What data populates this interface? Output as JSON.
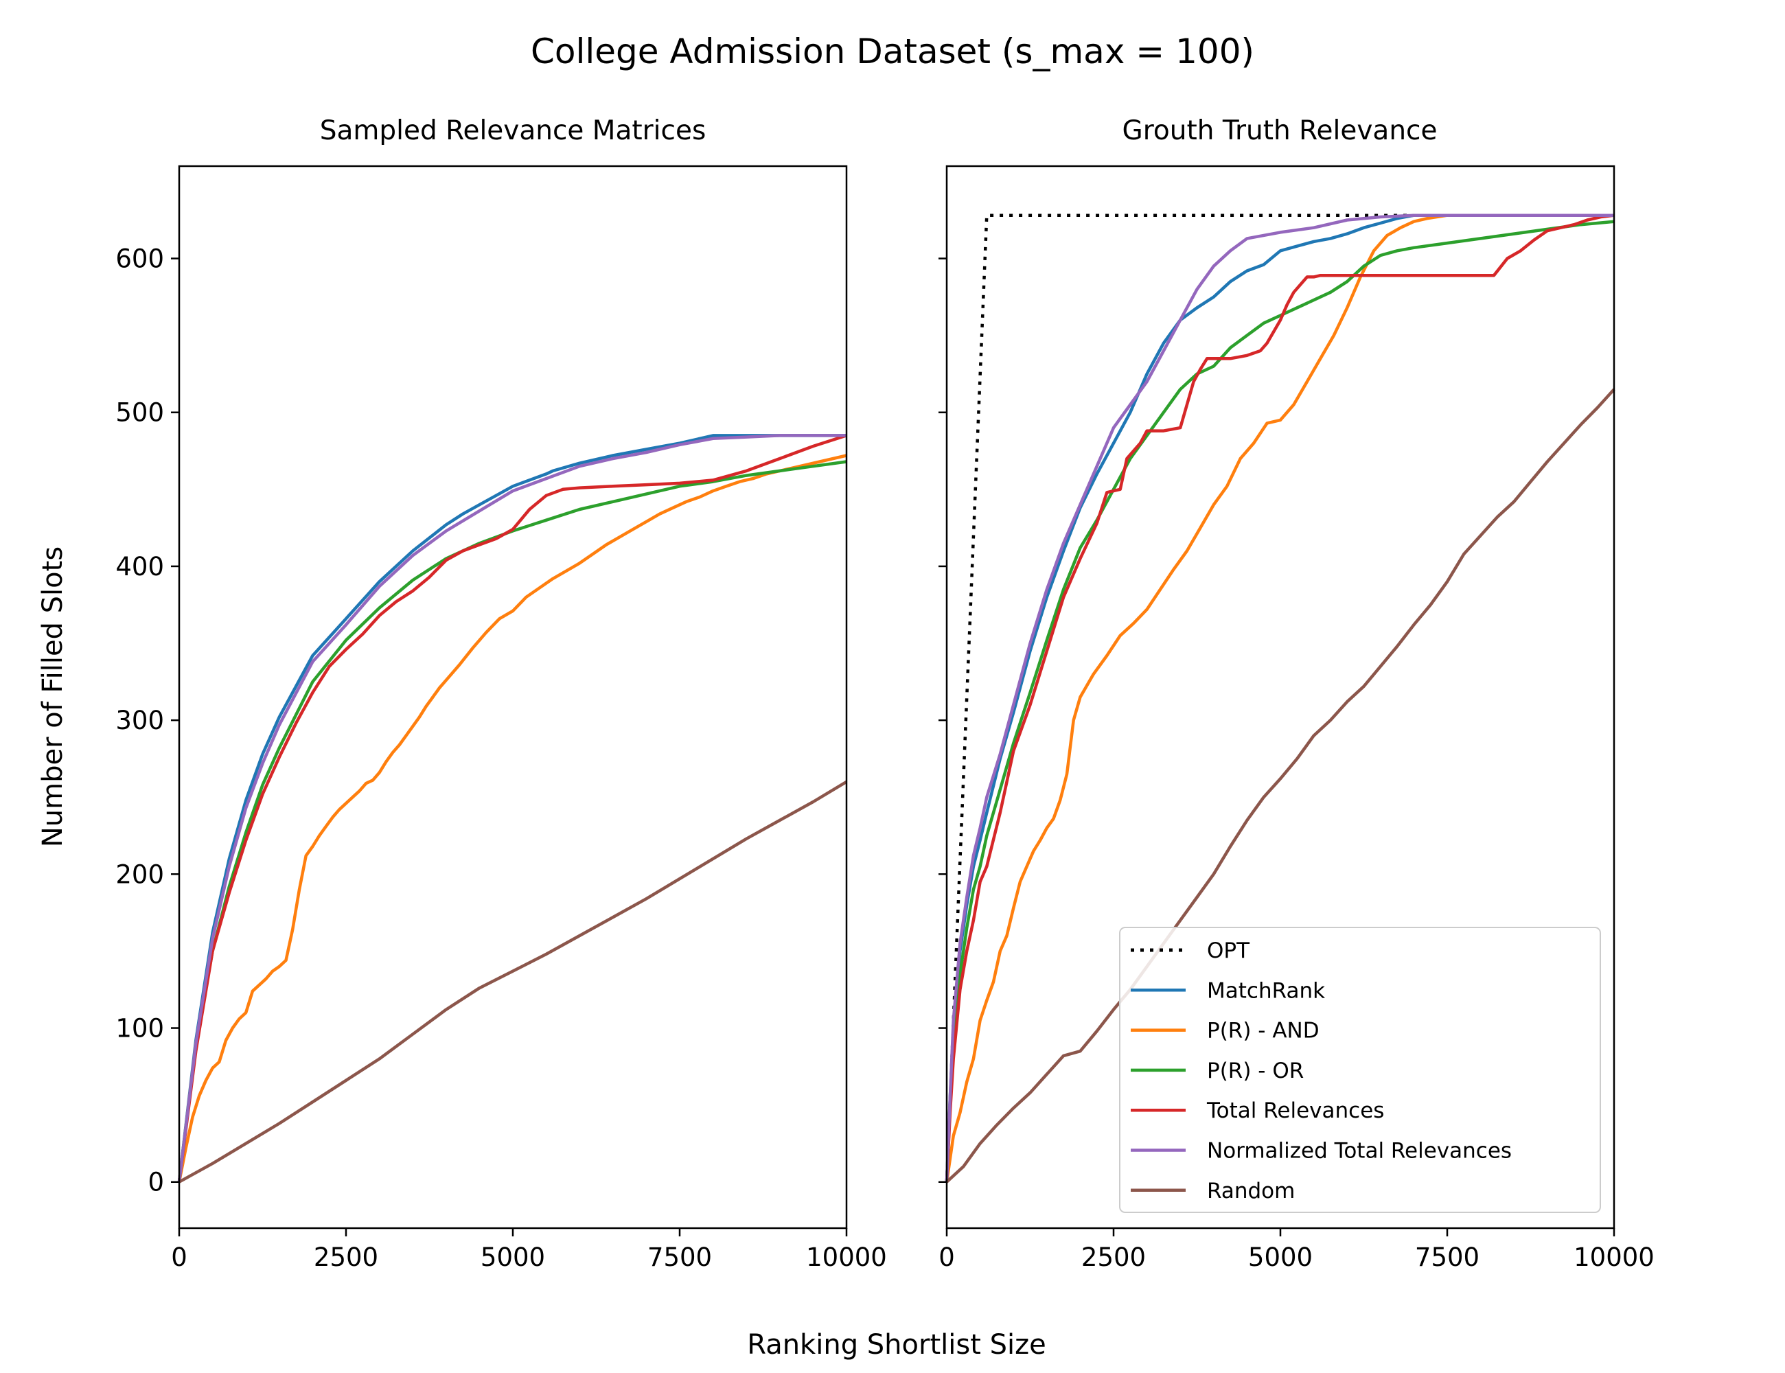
{
  "figure": {
    "title": "College Admission Dataset (s_max = 100)",
    "xlabel": "Ranking Shortlist Size",
    "ylabel": "Number of Filled Slots"
  },
  "chart_data": [
    {
      "type": "line",
      "title": "Sampled Relevance Matrices",
      "xlabel": "Ranking Shortlist Size",
      "ylabel": "Number of Filled Slots",
      "xlim": [
        0,
        10000
      ],
      "ylim": [
        -30,
        660
      ],
      "xticks": [
        0,
        2500,
        5000,
        7500,
        10000
      ],
      "yticks": [
        0,
        100,
        200,
        300,
        400,
        500,
        600
      ],
      "grid": false,
      "series": [
        {
          "key": "matchrank",
          "color": "#1f77b4",
          "x": [
            0,
            250,
            500,
            750,
            1000,
            1250,
            1500,
            2000,
            2500,
            3000,
            3500,
            4000,
            4250,
            4500,
            5000,
            5500,
            5600,
            6000,
            6500,
            7000,
            7500,
            8000,
            8500,
            9000,
            9500,
            10000
          ],
          "y": [
            0,
            92,
            162,
            210,
            248,
            278,
            302,
            342,
            366,
            390,
            410,
            427,
            434,
            440,
            452,
            460,
            462,
            467,
            472,
            476,
            480,
            485,
            485,
            485,
            485,
            485
          ]
        },
        {
          "key": "p_and",
          "color": "#ff7f0e",
          "x": [
            0,
            100,
            200,
            300,
            400,
            500,
            600,
            700,
            800,
            900,
            1000,
            1100,
            1200,
            1300,
            1400,
            1500,
            1600,
            1700,
            1800,
            1900,
            2000,
            2100,
            2200,
            2300,
            2400,
            2500,
            2600,
            2700,
            2800,
            2900,
            3000,
            3100,
            3200,
            3300,
            3400,
            3500,
            3600,
            3700,
            3800,
            3900,
            4000,
            4200,
            4400,
            4600,
            4800,
            5000,
            5200,
            5400,
            5600,
            5800,
            6000,
            6200,
            6400,
            6600,
            6800,
            7000,
            7200,
            7400,
            7600,
            7800,
            8000,
            8200,
            8400,
            8600,
            8800,
            9000,
            9200,
            9400,
            9600,
            9800,
            10000
          ],
          "y": [
            0,
            22,
            42,
            56,
            66,
            74,
            78,
            92,
            100,
            106,
            110,
            124,
            128,
            132,
            137,
            140,
            144,
            164,
            190,
            212,
            218,
            225,
            231,
            237,
            242,
            246,
            250,
            254,
            259,
            261,
            266,
            273,
            279,
            284,
            290,
            296,
            302,
            309,
            315,
            321,
            326,
            336,
            347,
            357,
            366,
            371,
            380,
            386,
            392,
            397,
            402,
            408,
            414,
            419,
            424,
            429,
            434,
            438,
            442,
            445,
            449,
            452,
            455,
            457,
            460,
            462,
            464,
            466,
            468,
            470,
            472
          ]
        },
        {
          "key": "p_or",
          "color": "#2ca02c",
          "x": [
            0,
            250,
            500,
            750,
            1000,
            1250,
            1500,
            2000,
            2500,
            3000,
            3500,
            4000,
            4500,
            5000,
            5500,
            6000,
            6500,
            7000,
            7500,
            8000,
            8500,
            9000,
            9500,
            10000
          ],
          "y": [
            0,
            90,
            150,
            192,
            227,
            258,
            282,
            325,
            352,
            373,
            391,
            405,
            415,
            423,
            430,
            437,
            442,
            447,
            452,
            455,
            459,
            462,
            465,
            468
          ]
        },
        {
          "key": "total",
          "color": "#d62728",
          "x": [
            0,
            250,
            500,
            750,
            1000,
            1250,
            1500,
            1750,
            2000,
            2250,
            2500,
            2750,
            3000,
            3250,
            3500,
            3750,
            4000,
            4250,
            4500,
            4750,
            5000,
            5250,
            5500,
            5750,
            6000,
            6500,
            7000,
            7500,
            8000,
            8500,
            9000,
            9500,
            10000
          ],
          "y": [
            0,
            85,
            150,
            188,
            222,
            252,
            276,
            298,
            318,
            335,
            346,
            356,
            368,
            377,
            384,
            393,
            404,
            410,
            414,
            418,
            424,
            437,
            446,
            450,
            451,
            452,
            453,
            454,
            456,
            462,
            470,
            478,
            485
          ]
        },
        {
          "key": "normalized",
          "color": "#9467bd",
          "x": [
            0,
            250,
            500,
            750,
            1000,
            1250,
            1500,
            2000,
            2500,
            3000,
            3500,
            4000,
            4500,
            5000,
            5500,
            6000,
            6500,
            7000,
            7500,
            8000,
            8500,
            9000,
            9500,
            10000
          ],
          "y": [
            0,
            90,
            158,
            205,
            243,
            272,
            297,
            338,
            362,
            387,
            407,
            423,
            436,
            449,
            457,
            465,
            470,
            474,
            479,
            483,
            484,
            485,
            485,
            485
          ]
        },
        {
          "key": "random",
          "color": "#8c564b",
          "x": [
            0,
            500,
            1000,
            1500,
            2000,
            2500,
            3000,
            3500,
            4000,
            4500,
            5000,
            5500,
            6000,
            6500,
            7000,
            7500,
            8000,
            8500,
            9000,
            9500,
            10000
          ],
          "y": [
            0,
            12,
            25,
            38,
            52,
            66,
            80,
            96,
            112,
            126,
            137,
            148,
            160,
            172,
            184,
            197,
            210,
            223,
            235,
            247,
            260
          ]
        }
      ]
    },
    {
      "type": "line",
      "title": "Grouth Truth Relevance",
      "xlabel": "Ranking Shortlist Size",
      "ylabel": "",
      "xlim": [
        0,
        10000
      ],
      "ylim": [
        -30,
        660
      ],
      "xticks": [
        0,
        2500,
        5000,
        7500,
        10000
      ],
      "yticks": [
        0,
        100,
        200,
        300,
        400,
        500,
        600
      ],
      "grid": false,
      "legend": {
        "loc": "lower right"
      },
      "series": [
        {
          "key": "opt",
          "name": "OPT",
          "color": "#000000",
          "dash": "dotted",
          "x": [
            0,
            600,
            10000
          ],
          "y": [
            0,
            628,
            628
          ]
        },
        {
          "key": "matchrank",
          "name": "MatchRank",
          "color": "#1f77b4",
          "x": [
            0,
            50,
            100,
            200,
            300,
            400,
            500,
            600,
            800,
            1000,
            1250,
            1500,
            1750,
            2000,
            2250,
            2500,
            2750,
            3000,
            3250,
            3500,
            3750,
            4000,
            4250,
            4500,
            4750,
            5000,
            5250,
            5500,
            5750,
            6000,
            6250,
            6500,
            6750,
            7000,
            7500,
            8000,
            9000,
            10000
          ],
          "y": [
            0,
            55,
            100,
            150,
            180,
            205,
            222,
            240,
            275,
            305,
            345,
            380,
            410,
            438,
            460,
            480,
            500,
            525,
            545,
            560,
            568,
            575,
            585,
            592,
            596,
            605,
            608,
            611,
            613,
            616,
            620,
            623,
            626,
            628,
            628,
            628,
            628,
            628
          ]
        },
        {
          "key": "p_and",
          "name": "P(R) - AND",
          "color": "#ff7f0e",
          "x": [
            0,
            100,
            200,
            300,
            400,
            500,
            600,
            700,
            800,
            900,
            1000,
            1100,
            1200,
            1300,
            1400,
            1500,
            1600,
            1700,
            1800,
            1900,
            2000,
            2200,
            2400,
            2600,
            2800,
            3000,
            3200,
            3400,
            3600,
            3800,
            4000,
            4200,
            4400,
            4600,
            4800,
            5000,
            5200,
            5400,
            5600,
            5800,
            6000,
            6200,
            6400,
            6600,
            6800,
            7000,
            7200,
            7500,
            8000,
            9000,
            10000
          ],
          "y": [
            0,
            30,
            45,
            65,
            80,
            105,
            118,
            130,
            150,
            160,
            178,
            195,
            205,
            215,
            222,
            230,
            236,
            248,
            265,
            300,
            315,
            330,
            342,
            355,
            363,
            372,
            385,
            398,
            410,
            425,
            440,
            452,
            470,
            480,
            493,
            495,
            505,
            520,
            535,
            550,
            568,
            588,
            605,
            615,
            620,
            624,
            626,
            628,
            628,
            628,
            628
          ]
        },
        {
          "key": "p_or",
          "name": "P(R) - OR",
          "color": "#2ca02c",
          "x": [
            0,
            50,
            100,
            200,
            300,
            400,
            500,
            600,
            800,
            1000,
            1250,
            1500,
            1750,
            2000,
            2250,
            2500,
            2750,
            3000,
            3250,
            3500,
            3750,
            4000,
            4250,
            4500,
            4750,
            5000,
            5250,
            5500,
            5750,
            6000,
            6250,
            6500,
            6750,
            7000,
            7500,
            8000,
            8500,
            9000,
            9500,
            10000
          ],
          "y": [
            0,
            50,
            90,
            135,
            165,
            190,
            205,
            225,
            255,
            285,
            318,
            352,
            385,
            412,
            430,
            450,
            470,
            485,
            500,
            515,
            525,
            530,
            542,
            550,
            558,
            563,
            568,
            573,
            578,
            585,
            595,
            602,
            605,
            607,
            610,
            613,
            616,
            619,
            622,
            624
          ]
        },
        {
          "key": "total",
          "name": "Total Relevances",
          "color": "#d62728",
          "x": [
            0,
            50,
            100,
            200,
            300,
            400,
            500,
            600,
            800,
            1000,
            1250,
            1500,
            1750,
            2000,
            2250,
            2400,
            2600,
            2700,
            2900,
            3000,
            3250,
            3500,
            3700,
            3800,
            3900,
            4000,
            4250,
            4500,
            4700,
            4800,
            5000,
            5100,
            5200,
            5400,
            5500,
            5600,
            5800,
            6000,
            6500,
            7000,
            7500,
            8000,
            8200,
            8400,
            8600,
            8800,
            9000,
            9200,
            9400,
            9600,
            9800,
            10000
          ],
          "y": [
            0,
            45,
            80,
            125,
            150,
            170,
            195,
            205,
            240,
            280,
            310,
            345,
            380,
            405,
            428,
            448,
            450,
            470,
            480,
            488,
            488,
            490,
            520,
            528,
            535,
            535,
            535,
            537,
            540,
            545,
            560,
            570,
            578,
            588,
            588,
            589,
            589,
            589,
            589,
            589,
            589,
            589,
            589,
            600,
            605,
            612,
            618,
            620,
            622,
            625,
            627,
            628
          ]
        },
        {
          "key": "normalized",
          "name": "Normalized Total Relevances",
          "color": "#9467bd",
          "x": [
            0,
            50,
            100,
            200,
            300,
            400,
            500,
            600,
            800,
            1000,
            1250,
            1500,
            1750,
            2000,
            2250,
            2500,
            2750,
            3000,
            3250,
            3500,
            3750,
            4000,
            4250,
            4500,
            5000,
            5500,
            6000,
            6500,
            7000,
            8000,
            9000,
            10000
          ],
          "y": [
            0,
            55,
            105,
            155,
            185,
            212,
            230,
            250,
            278,
            310,
            350,
            385,
            415,
            440,
            465,
            490,
            505,
            520,
            540,
            560,
            580,
            595,
            605,
            613,
            617,
            620,
            625,
            627,
            628,
            628,
            628,
            628
          ]
        },
        {
          "key": "random",
          "name": "Random",
          "color": "#8c564b",
          "x": [
            0,
            250,
            500,
            750,
            1000,
            1250,
            1500,
            1750,
            2000,
            2250,
            2500,
            2750,
            3000,
            3250,
            3500,
            3750,
            4000,
            4250,
            4500,
            4750,
            5000,
            5250,
            5500,
            5750,
            6000,
            6250,
            6500,
            6750,
            7000,
            7250,
            7500,
            7750,
            8000,
            8250,
            8500,
            8750,
            9000,
            9250,
            9500,
            9750,
            10000
          ],
          "y": [
            0,
            10,
            25,
            37,
            48,
            58,
            70,
            82,
            85,
            98,
            112,
            125,
            140,
            155,
            170,
            185,
            200,
            218,
            235,
            250,
            262,
            275,
            290,
            300,
            312,
            322,
            335,
            348,
            362,
            375,
            390,
            408,
            420,
            432,
            442,
            455,
            468,
            480,
            492,
            503,
            515
          ]
        }
      ]
    }
  ]
}
